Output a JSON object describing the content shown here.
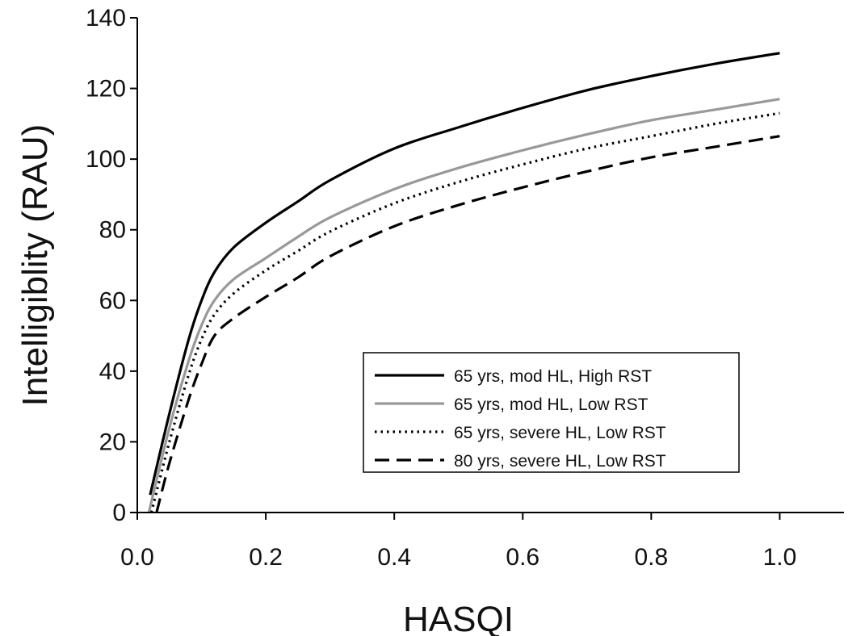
{
  "chart_data": {
    "type": "line",
    "title": "",
    "xlabel": "HASQI",
    "ylabel": "Intelligiblity (RAU)",
    "xlim": [
      0.0,
      1.1
    ],
    "ylim": [
      0,
      140
    ],
    "xticks": [
      0.0,
      0.2,
      0.4,
      0.6,
      0.8,
      1.0
    ],
    "xtick_labels": [
      "0.0",
      "0.2",
      "0.4",
      "0.6",
      "0.8",
      "1.0"
    ],
    "yticks": [
      0,
      20,
      40,
      60,
      80,
      100,
      120,
      140
    ],
    "ytick_labels": [
      "0",
      "20",
      "40",
      "60",
      "80",
      "100",
      "120",
      "140"
    ],
    "grid": false,
    "legend_position": "lower-right",
    "series": [
      {
        "name": "65 yrs, mod HL, High RST",
        "color": "#000000",
        "dash": "solid",
        "x": [
          0.02,
          0.05,
          0.08,
          0.1,
          0.12,
          0.15,
          0.2,
          0.25,
          0.3,
          0.4,
          0.5,
          0.6,
          0.7,
          0.8,
          0.9,
          1.0
        ],
        "y": [
          5,
          28,
          49,
          60,
          68,
          75,
          82,
          88,
          94,
          103,
          109,
          114.5,
          119.5,
          123.5,
          127,
          130
        ]
      },
      {
        "name": "65 yrs, mod HL, Low RST",
        "color": "#999999",
        "dash": "solid",
        "x": [
          0.018,
          0.05,
          0.08,
          0.1,
          0.12,
          0.15,
          0.2,
          0.25,
          0.3,
          0.4,
          0.5,
          0.6,
          0.7,
          0.8,
          0.9,
          1.0
        ],
        "y": [
          0,
          24,
          43,
          53,
          60,
          66,
          72,
          78,
          83.5,
          91.5,
          97.5,
          102.5,
          107,
          111,
          114,
          117
        ]
      },
      {
        "name": "65 yrs, severe HL, Low RST",
        "color": "#000000",
        "dash": "dotted",
        "x": [
          0.022,
          0.05,
          0.08,
          0.1,
          0.12,
          0.15,
          0.2,
          0.25,
          0.3,
          0.4,
          0.5,
          0.6,
          0.7,
          0.8,
          0.9,
          1.0
        ],
        "y": [
          0,
          20,
          39,
          49,
          56,
          62,
          68.5,
          74,
          79.5,
          87.5,
          93.5,
          98.5,
          103,
          106.5,
          110,
          113
        ]
      },
      {
        "name": "80 yrs, severe HL, Low RST",
        "color": "#000000",
        "dash": "dashed",
        "x": [
          0.03,
          0.05,
          0.08,
          0.1,
          0.12,
          0.15,
          0.2,
          0.25,
          0.3,
          0.4,
          0.5,
          0.6,
          0.7,
          0.8,
          0.9,
          1.0
        ],
        "y": [
          0,
          14,
          32,
          42,
          50,
          55,
          61,
          66.5,
          72.5,
          81,
          87,
          92,
          96.5,
          100.5,
          103.5,
          106.5
        ]
      }
    ]
  }
}
